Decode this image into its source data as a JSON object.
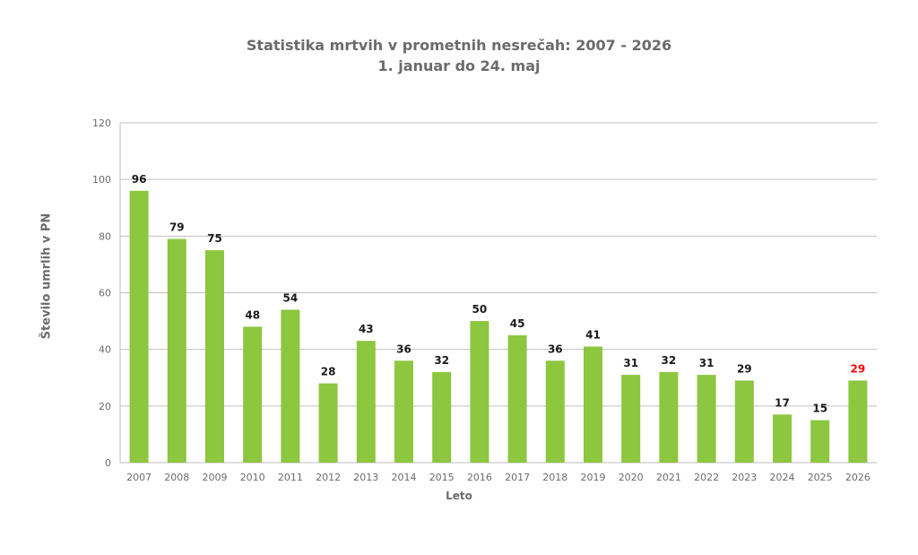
{
  "chart_data": {
    "type": "bar",
    "title": "Statistika mrtvih v prometnih nesrečah: 2007 - 2026",
    "subtitle": "1. januar do 24. maj",
    "xlabel": "Leto",
    "ylabel": "Število umrlih v PN",
    "ylim": [
      0,
      120
    ],
    "yticks": [
      0,
      20,
      40,
      60,
      80,
      100,
      120
    ],
    "grid": true,
    "categories": [
      "2007",
      "2008",
      "2009",
      "2010",
      "2011",
      "2012",
      "2013",
      "2014",
      "2015",
      "2016",
      "2017",
      "2018",
      "2019",
      "2020",
      "2021",
      "2022",
      "2023",
      "2024",
      "2025",
      "2026"
    ],
    "values": [
      96,
      79,
      75,
      48,
      54,
      28,
      43,
      36,
      32,
      50,
      45,
      36,
      41,
      31,
      32,
      31,
      29,
      17,
      15,
      29
    ],
    "colors": {
      "bar": "#8dc63f",
      "label": "#1a1a1a",
      "highlight_label": "#ff0000",
      "grid": "#bfbfbf",
      "axis_text": "#6b6b6b"
    },
    "highlight_category": "2026"
  }
}
